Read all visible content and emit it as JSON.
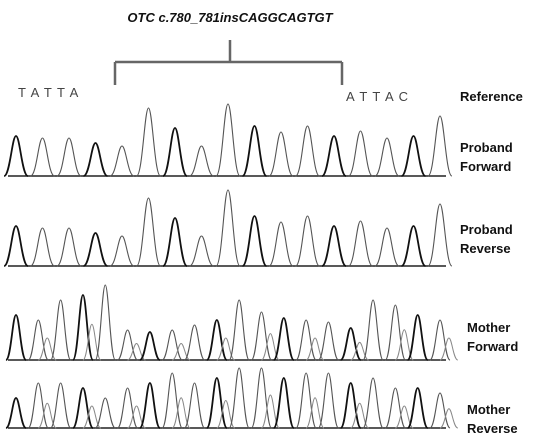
{
  "title": "OTC c.780_781insCAGGCAGTGT",
  "reference": {
    "left_bases": "T A T T A",
    "right_bases": "A T T A C",
    "label": "Reference"
  },
  "tracks": [
    {
      "label_lines": [
        "Proband",
        "Forward"
      ]
    },
    {
      "label_lines": [
        "Proband",
        "Reverse"
      ]
    },
    {
      "label_lines": [
        "Mother",
        "Forward"
      ]
    },
    {
      "label_lines": [
        "Mother",
        "Reverse"
      ]
    }
  ]
}
